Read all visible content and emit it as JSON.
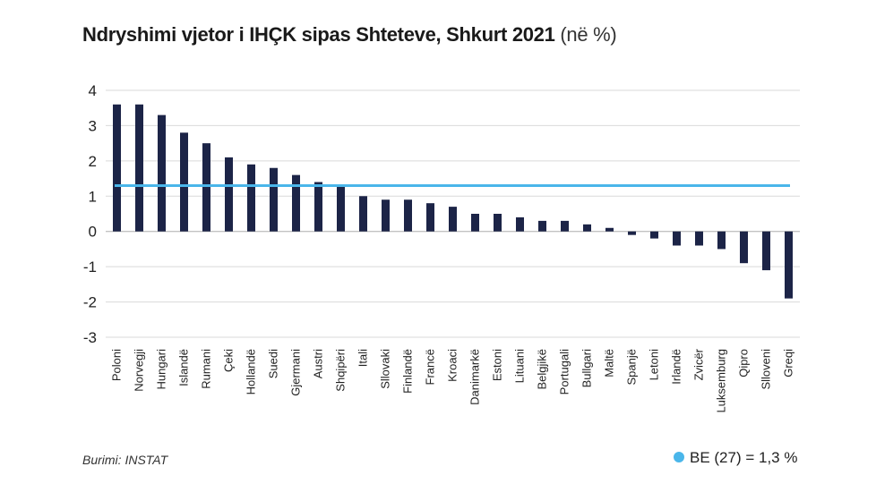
{
  "chart_data": {
    "type": "bar",
    "title": "Ndryshimi vjetor i IHÇK sipas Shteteve, Shkurt 2021",
    "unit": "(në %)",
    "categories": [
      "Poloni",
      "Norvegji",
      "Hungari",
      "Islandë",
      "Rumani",
      "Çeki",
      "Hollandë",
      "Suedi",
      "Gjermani",
      "Austri",
      "Shqipëri",
      "Itali",
      "Sllovaki",
      "Finlandë",
      "Francë",
      "Kroaci",
      "Danimarkë",
      "Estoni",
      "Lituani",
      "Belgjikë",
      "Portugali",
      "Bullgari",
      "Maltë",
      "Spanjë",
      "Letoni",
      "Irlandë",
      "Zvicër",
      "Luksemburg",
      "Qipro",
      "Slloveni",
      "Greqi"
    ],
    "values": [
      3.6,
      3.6,
      3.3,
      2.8,
      2.5,
      2.1,
      1.9,
      1.8,
      1.6,
      1.4,
      1.3,
      1.0,
      0.9,
      0.9,
      0.8,
      0.7,
      0.5,
      0.5,
      0.4,
      0.3,
      0.3,
      0.2,
      0.1,
      -0.1,
      -0.2,
      -0.4,
      -0.4,
      -0.5,
      -0.9,
      -1.1,
      -1.9
    ],
    "ylim": [
      -3,
      4
    ],
    "yticks": [
      4,
      3,
      2,
      1,
      0,
      -1,
      -2,
      -3
    ],
    "reference_line": {
      "label": "BE (27) = 1,3 %",
      "value": 1.3
    },
    "grid": true,
    "bar_color": "#1c2447",
    "reference_color": "#4ab6ea"
  },
  "source": "Burimi: INSTAT"
}
